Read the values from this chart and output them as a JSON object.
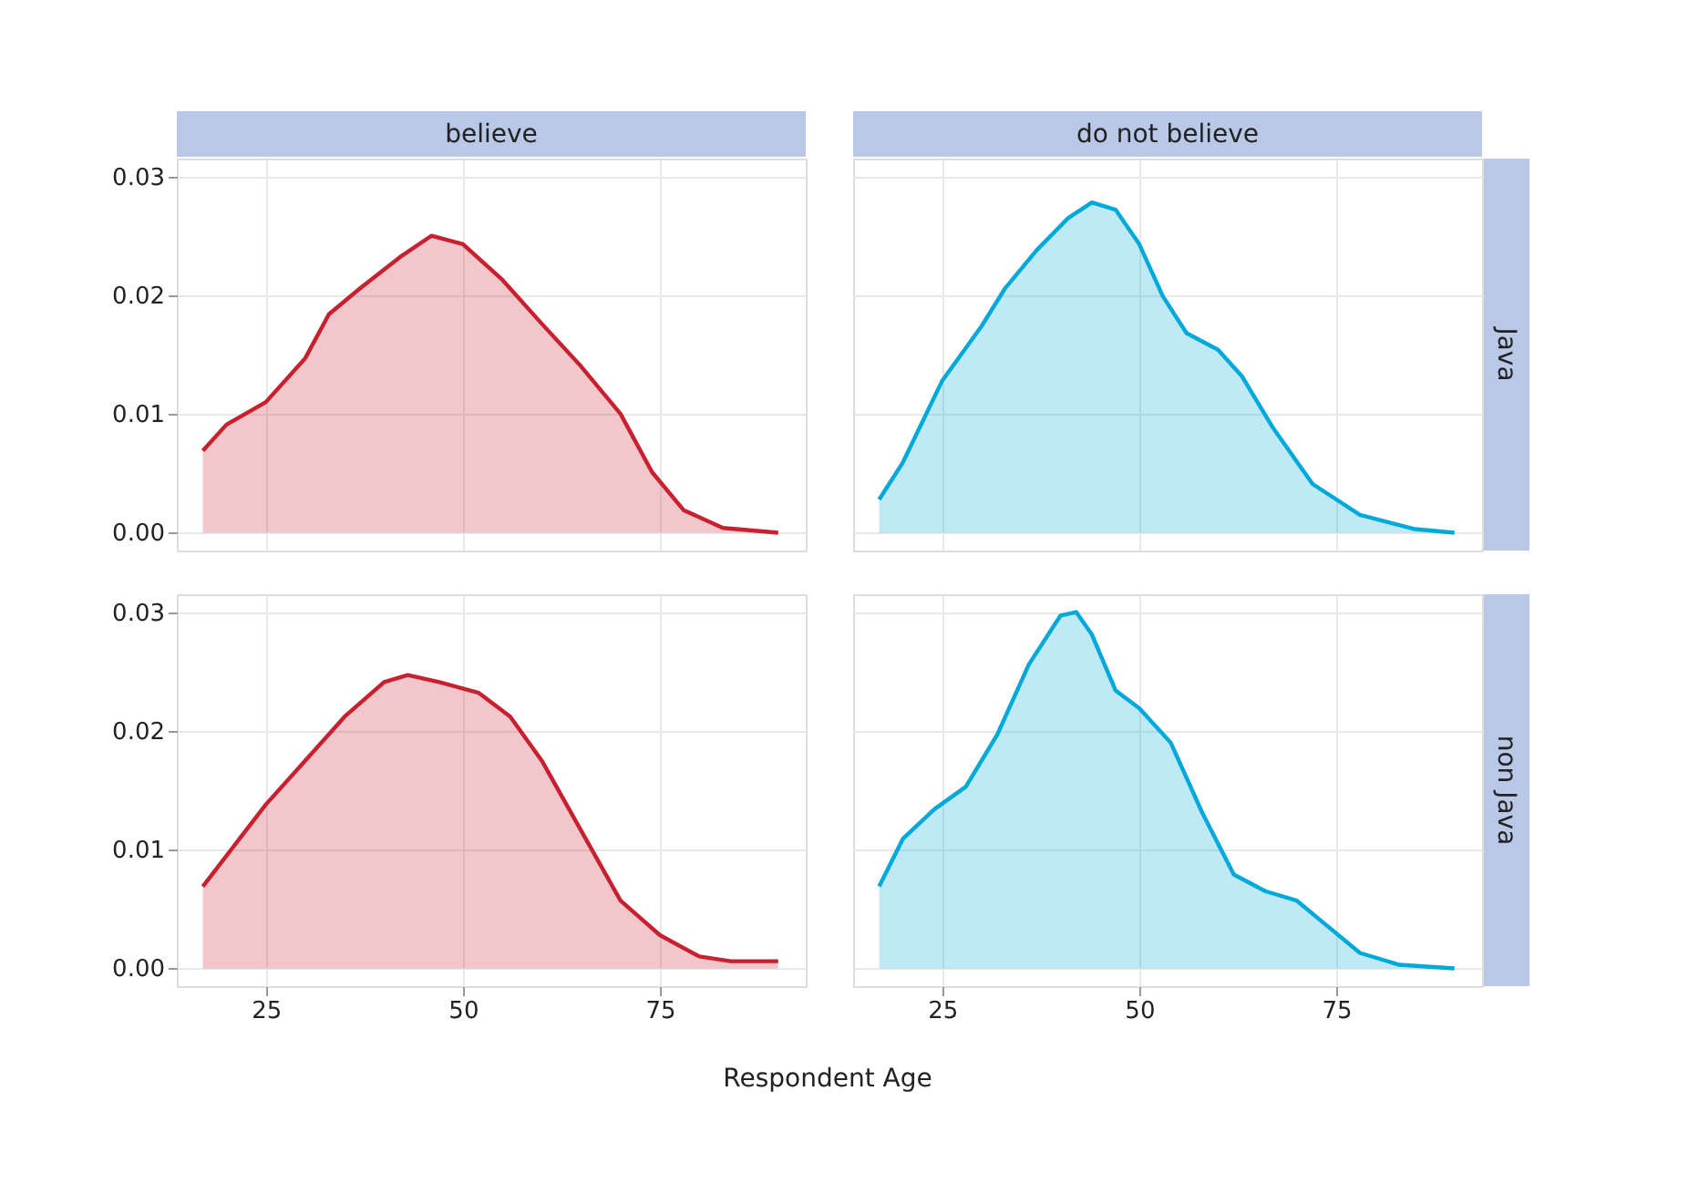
{
  "chart_data": [
    {
      "type": "area",
      "title": "believe",
      "tick_labels": "y",
      "grid": true,
      "xlim": [
        13.7,
        93.5
      ],
      "ylim": [
        -0.0015,
        0.0315
      ],
      "xticks": [
        25,
        50,
        75
      ],
      "yticks": [
        {
          "value": 0,
          "label": "0.00"
        },
        {
          "value": 0.01,
          "label": "0.01"
        },
        {
          "value": 0.02,
          "label": "0.02"
        },
        {
          "value": 0.03,
          "label": "0.03"
        }
      ],
      "series": [
        {
          "color": "#c8202f",
          "x": [
            17,
            20,
            25,
            30,
            33,
            37,
            42,
            46,
            50,
            55,
            60,
            65,
            70,
            74,
            78,
            83,
            90
          ],
          "values": [
            0.0069,
            0.0091,
            0.011,
            0.0147,
            0.0184,
            0.0206,
            0.0232,
            0.025,
            0.0243,
            0.0213,
            0.0176,
            0.014,
            0.01,
            0.0051,
            0.0019,
            0.0004,
            0
          ]
        }
      ]
    },
    {
      "type": "area",
      "title": "do not believe",
      "y2label": "Java",
      "tick_labels": false,
      "grid": true,
      "xlim": [
        13.7,
        93.5
      ],
      "ylim": [
        -0.0015,
        0.0315
      ],
      "xticks": [
        25,
        50,
        75
      ],
      "yticks": [
        {
          "value": 0,
          "label": null
        },
        {
          "value": 0.01,
          "label": null
        },
        {
          "value": 0.02,
          "label": null
        },
        {
          "value": 0.03,
          "label": null
        }
      ],
      "series": [
        {
          "color": "#00a9d9",
          "x": [
            17,
            20,
            25,
            30,
            33,
            37,
            41,
            44,
            47,
            50,
            53,
            56,
            60,
            63,
            67,
            72,
            78,
            85,
            90
          ],
          "values": [
            0.0028,
            0.0059,
            0.0128,
            0.0174,
            0.0206,
            0.0238,
            0.0265,
            0.0278,
            0.0272,
            0.0243,
            0.0199,
            0.0168,
            0.0154,
            0.0132,
            0.0088,
            0.0041,
            0.0015,
            0.0003,
            0
          ]
        }
      ]
    },
    {
      "type": "area",
      "xlabel": "Respondent Age",
      "grid": true,
      "xlim": [
        13.7,
        93.5
      ],
      "ylim": [
        -0.0015,
        0.0315
      ],
      "xticks": [
        25,
        50,
        75
      ],
      "yticks": [
        {
          "value": 0,
          "label": "0.00"
        },
        {
          "value": 0.01,
          "label": "0.01"
        },
        {
          "value": 0.02,
          "label": "0.02"
        },
        {
          "value": 0.03,
          "label": "0.03"
        }
      ],
      "series": [
        {
          "color": "#c8202f",
          "x": [
            17,
            25,
            30,
            35,
            40,
            43,
            47,
            52,
            56,
            60,
            65,
            70,
            75,
            80,
            84,
            90
          ],
          "values": [
            0.0069,
            0.0138,
            0.0175,
            0.0212,
            0.0241,
            0.0247,
            0.0241,
            0.0232,
            0.0212,
            0.0175,
            0.0116,
            0.0057,
            0.0028,
            0.001,
            0.0006,
            0.0006
          ]
        }
      ]
    },
    {
      "type": "area",
      "y2label": "non Java",
      "tick_labels": "x",
      "grid": true,
      "xlim": [
        13.7,
        93.5
      ],
      "ylim": [
        -0.0015,
        0.0315
      ],
      "xticks": [
        25,
        50,
        75
      ],
      "yticks": [
        {
          "value": 0,
          "label": null
        },
        {
          "value": 0.01,
          "label": null
        },
        {
          "value": 0.02,
          "label": null
        },
        {
          "value": 0.03,
          "label": null
        }
      ],
      "series": [
        {
          "color": "#00a9d9",
          "x": [
            17,
            20,
            24,
            28,
            32,
            36,
            40,
            42,
            44,
            47,
            50,
            54,
            58,
            62,
            66,
            70,
            74,
            78,
            83,
            90
          ],
          "values": [
            0.0069,
            0.0109,
            0.0134,
            0.0153,
            0.0197,
            0.0256,
            0.0297,
            0.03,
            0.0281,
            0.0234,
            0.0219,
            0.019,
            0.0131,
            0.0079,
            0.0065,
            0.0057,
            0.0035,
            0.0013,
            0.0003,
            0
          ]
        }
      ]
    }
  ]
}
